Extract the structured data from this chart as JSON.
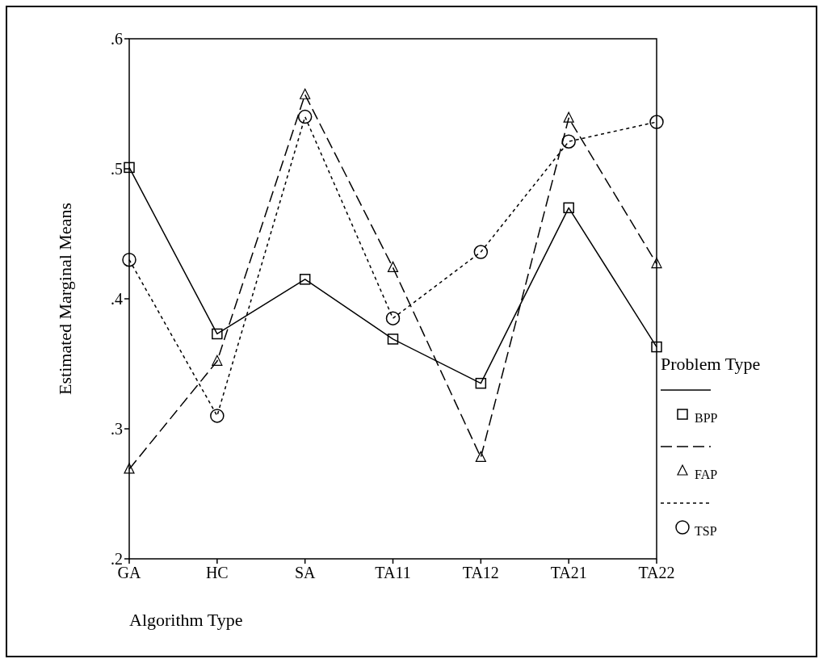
{
  "chart_data": {
    "type": "line",
    "xlabel": "Algorithm Type",
    "ylabel": "Estimated Marginal Means",
    "legend_title": "Problem Type",
    "categories": [
      "GA",
      "HC",
      "SA",
      "TA11",
      "TA12",
      "TA21",
      "TA22"
    ],
    "series": [
      {
        "name": "BPP",
        "color": "#000000",
        "marker": "square",
        "line_style": "solid",
        "values": [
          0.501,
          0.373,
          0.415,
          0.369,
          0.335,
          0.47,
          0.363
        ]
      },
      {
        "name": "FAP",
        "color": "#000000",
        "marker": "triangle",
        "line_style": "dashed",
        "values": [
          0.269,
          0.352,
          0.557,
          0.424,
          0.278,
          0.539,
          0.427
        ]
      },
      {
        "name": "TSP",
        "color": "#000000",
        "marker": "circle",
        "line_style": "dotted",
        "values": [
          0.43,
          0.31,
          0.54,
          0.385,
          0.436,
          0.521,
          0.536
        ]
      }
    ],
    "ylim": [
      0.2,
      0.6
    ],
    "yticks": [
      {
        "value": 0.2,
        "label": ".2"
      },
      {
        "value": 0.3,
        "label": ".3"
      },
      {
        "value": 0.4,
        "label": ".4"
      },
      {
        "value": 0.5,
        "label": ".5"
      },
      {
        "value": 0.6,
        "label": ".6"
      }
    ],
    "grid": false,
    "legend": "right"
  }
}
